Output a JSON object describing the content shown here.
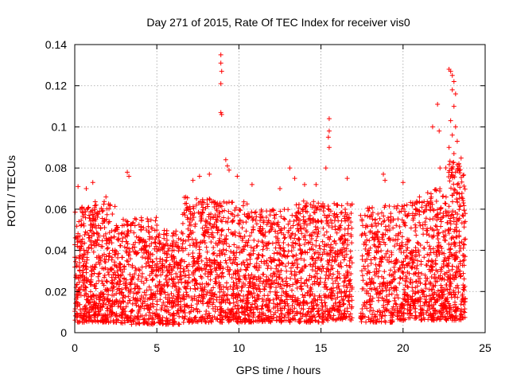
{
  "chart_data": {
    "type": "scatter",
    "title": "Day 271 of 2015, Rate Of TEC Index for receiver vis0",
    "xlabel": "GPS time / hours",
    "ylabel": "ROTI / TECUs",
    "xlim": [
      0,
      25
    ],
    "ylim": [
      0,
      0.14
    ],
    "x_ticks": [
      0,
      5,
      10,
      15,
      20,
      25
    ],
    "y_ticks": [
      0,
      0.02,
      0.04,
      0.06,
      0.08,
      0.1,
      0.12,
      0.14
    ],
    "x_tick_labels": [
      "0",
      "5",
      "10",
      "15",
      "20",
      "25"
    ],
    "y_tick_labels": [
      "0",
      "0.02",
      "0.04",
      "0.06",
      "0.08",
      "0.1",
      "0.12",
      "0.14"
    ],
    "grid": true,
    "legend": "none",
    "marker": "+",
    "color": "#ff0000",
    "series": [
      {
        "name": "ROTI",
        "density_profile": [
          {
            "x": [
              0.0,
              1.0
            ],
            "y_low": 0.005,
            "y_high": 0.062,
            "n": 220
          },
          {
            "x": [
              1.0,
              2.5
            ],
            "y_low": 0.005,
            "y_high": 0.064,
            "n": 320
          },
          {
            "x": [
              2.5,
              5.0
            ],
            "y_low": 0.004,
            "y_high": 0.056,
            "n": 420
          },
          {
            "x": [
              5.0,
              6.5
            ],
            "y_low": 0.004,
            "y_high": 0.05,
            "n": 260
          },
          {
            "x": [
              6.5,
              8.5
            ],
            "y_low": 0.005,
            "y_high": 0.066,
            "n": 360
          },
          {
            "x": [
              8.5,
              10.5
            ],
            "y_low": 0.005,
            "y_high": 0.064,
            "n": 380
          },
          {
            "x": [
              10.5,
              13.0
            ],
            "y_low": 0.005,
            "y_high": 0.06,
            "n": 440
          },
          {
            "x": [
              13.0,
              15.5
            ],
            "y_low": 0.005,
            "y_high": 0.064,
            "n": 440
          },
          {
            "x": [
              15.5,
              16.9
            ],
            "y_low": 0.006,
            "y_high": 0.063,
            "n": 260
          },
          {
            "x": [
              17.4,
              19.5
            ],
            "y_low": 0.005,
            "y_high": 0.062,
            "n": 320
          },
          {
            "x": [
              19.5,
              21.5
            ],
            "y_low": 0.006,
            "y_high": 0.064,
            "n": 340
          },
          {
            "x": [
              21.5,
              22.6
            ],
            "y_low": 0.006,
            "y_high": 0.07,
            "n": 230
          },
          {
            "x": [
              22.6,
              23.8
            ],
            "y_low": 0.006,
            "y_high": 0.085,
            "n": 300
          }
        ],
        "peaks": [
          {
            "x": 0.2,
            "y": 0.071
          },
          {
            "x": 0.7,
            "y": 0.07
          },
          {
            "x": 1.1,
            "y": 0.073
          },
          {
            "x": 1.9,
            "y": 0.066
          },
          {
            "x": 3.2,
            "y": 0.078
          },
          {
            "x": 3.3,
            "y": 0.076
          },
          {
            "x": 7.2,
            "y": 0.074
          },
          {
            "x": 7.6,
            "y": 0.076
          },
          {
            "x": 8.2,
            "y": 0.077
          },
          {
            "x": 8.9,
            "y": 0.135
          },
          {
            "x": 8.9,
            "y": 0.131
          },
          {
            "x": 8.95,
            "y": 0.127
          },
          {
            "x": 8.9,
            "y": 0.121
          },
          {
            "x": 8.9,
            "y": 0.107
          },
          {
            "x": 8.95,
            "y": 0.106
          },
          {
            "x": 9.2,
            "y": 0.084
          },
          {
            "x": 9.3,
            "y": 0.081
          },
          {
            "x": 9.4,
            "y": 0.079
          },
          {
            "x": 9.9,
            "y": 0.076
          },
          {
            "x": 10.8,
            "y": 0.072
          },
          {
            "x": 12.5,
            "y": 0.07
          },
          {
            "x": 13.1,
            "y": 0.08
          },
          {
            "x": 13.4,
            "y": 0.075
          },
          {
            "x": 14.0,
            "y": 0.072
          },
          {
            "x": 14.7,
            "y": 0.072
          },
          {
            "x": 15.3,
            "y": 0.08
          },
          {
            "x": 15.5,
            "y": 0.104
          },
          {
            "x": 15.5,
            "y": 0.098
          },
          {
            "x": 15.45,
            "y": 0.095
          },
          {
            "x": 15.5,
            "y": 0.09
          },
          {
            "x": 16.6,
            "y": 0.075
          },
          {
            "x": 18.8,
            "y": 0.077
          },
          {
            "x": 18.9,
            "y": 0.074
          },
          {
            "x": 20.0,
            "y": 0.073
          },
          {
            "x": 21.0,
            "y": 0.066
          },
          {
            "x": 21.5,
            "y": 0.068
          },
          {
            "x": 21.8,
            "y": 0.1
          },
          {
            "x": 22.1,
            "y": 0.111
          },
          {
            "x": 22.2,
            "y": 0.098
          },
          {
            "x": 22.25,
            "y": 0.08
          },
          {
            "x": 22.8,
            "y": 0.128
          },
          {
            "x": 22.9,
            "y": 0.127
          },
          {
            "x": 23.0,
            "y": 0.125
          },
          {
            "x": 23.1,
            "y": 0.122
          },
          {
            "x": 23.0,
            "y": 0.118
          },
          {
            "x": 23.2,
            "y": 0.116
          },
          {
            "x": 23.1,
            "y": 0.11
          },
          {
            "x": 22.9,
            "y": 0.103
          },
          {
            "x": 23.2,
            "y": 0.1
          },
          {
            "x": 23.0,
            "y": 0.096
          },
          {
            "x": 23.3,
            "y": 0.093
          },
          {
            "x": 22.8,
            "y": 0.09
          },
          {
            "x": 23.1,
            "y": 0.087
          },
          {
            "x": 23.4,
            "y": 0.082
          },
          {
            "x": 22.95,
            "y": 0.08
          },
          {
            "x": 23.2,
            "y": 0.078
          }
        ]
      }
    ]
  }
}
